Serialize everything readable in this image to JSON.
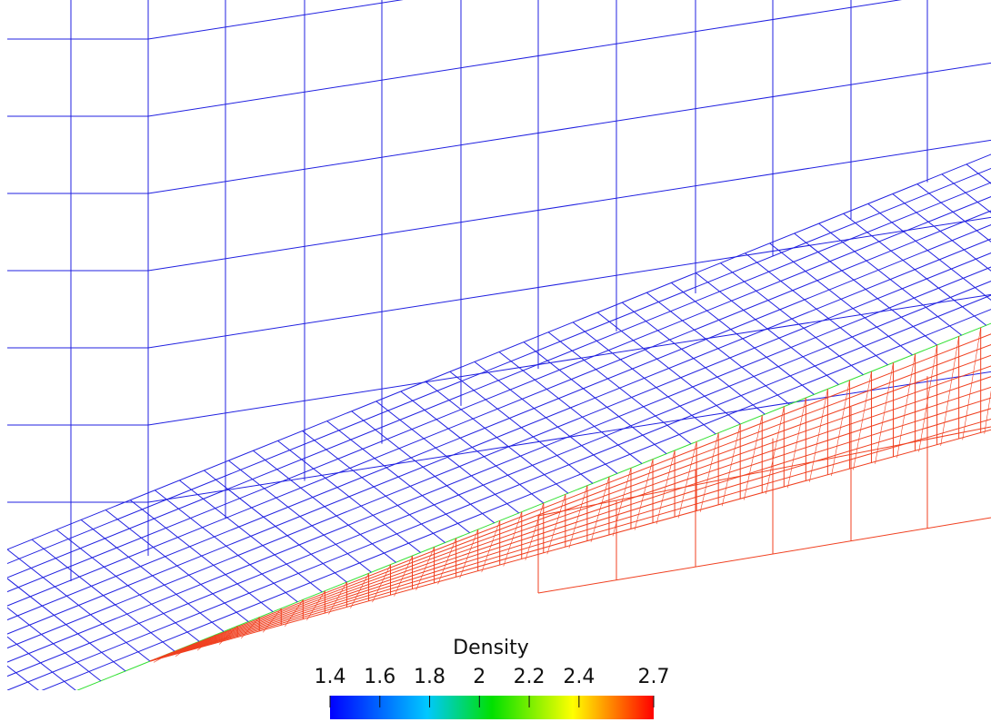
{
  "colorbar": {
    "title": "Density",
    "range": [
      1.4,
      2.7
    ],
    "ticks": [
      1.4,
      1.6,
      1.8,
      2,
      2.2,
      2.4,
      2.7
    ]
  }
}
